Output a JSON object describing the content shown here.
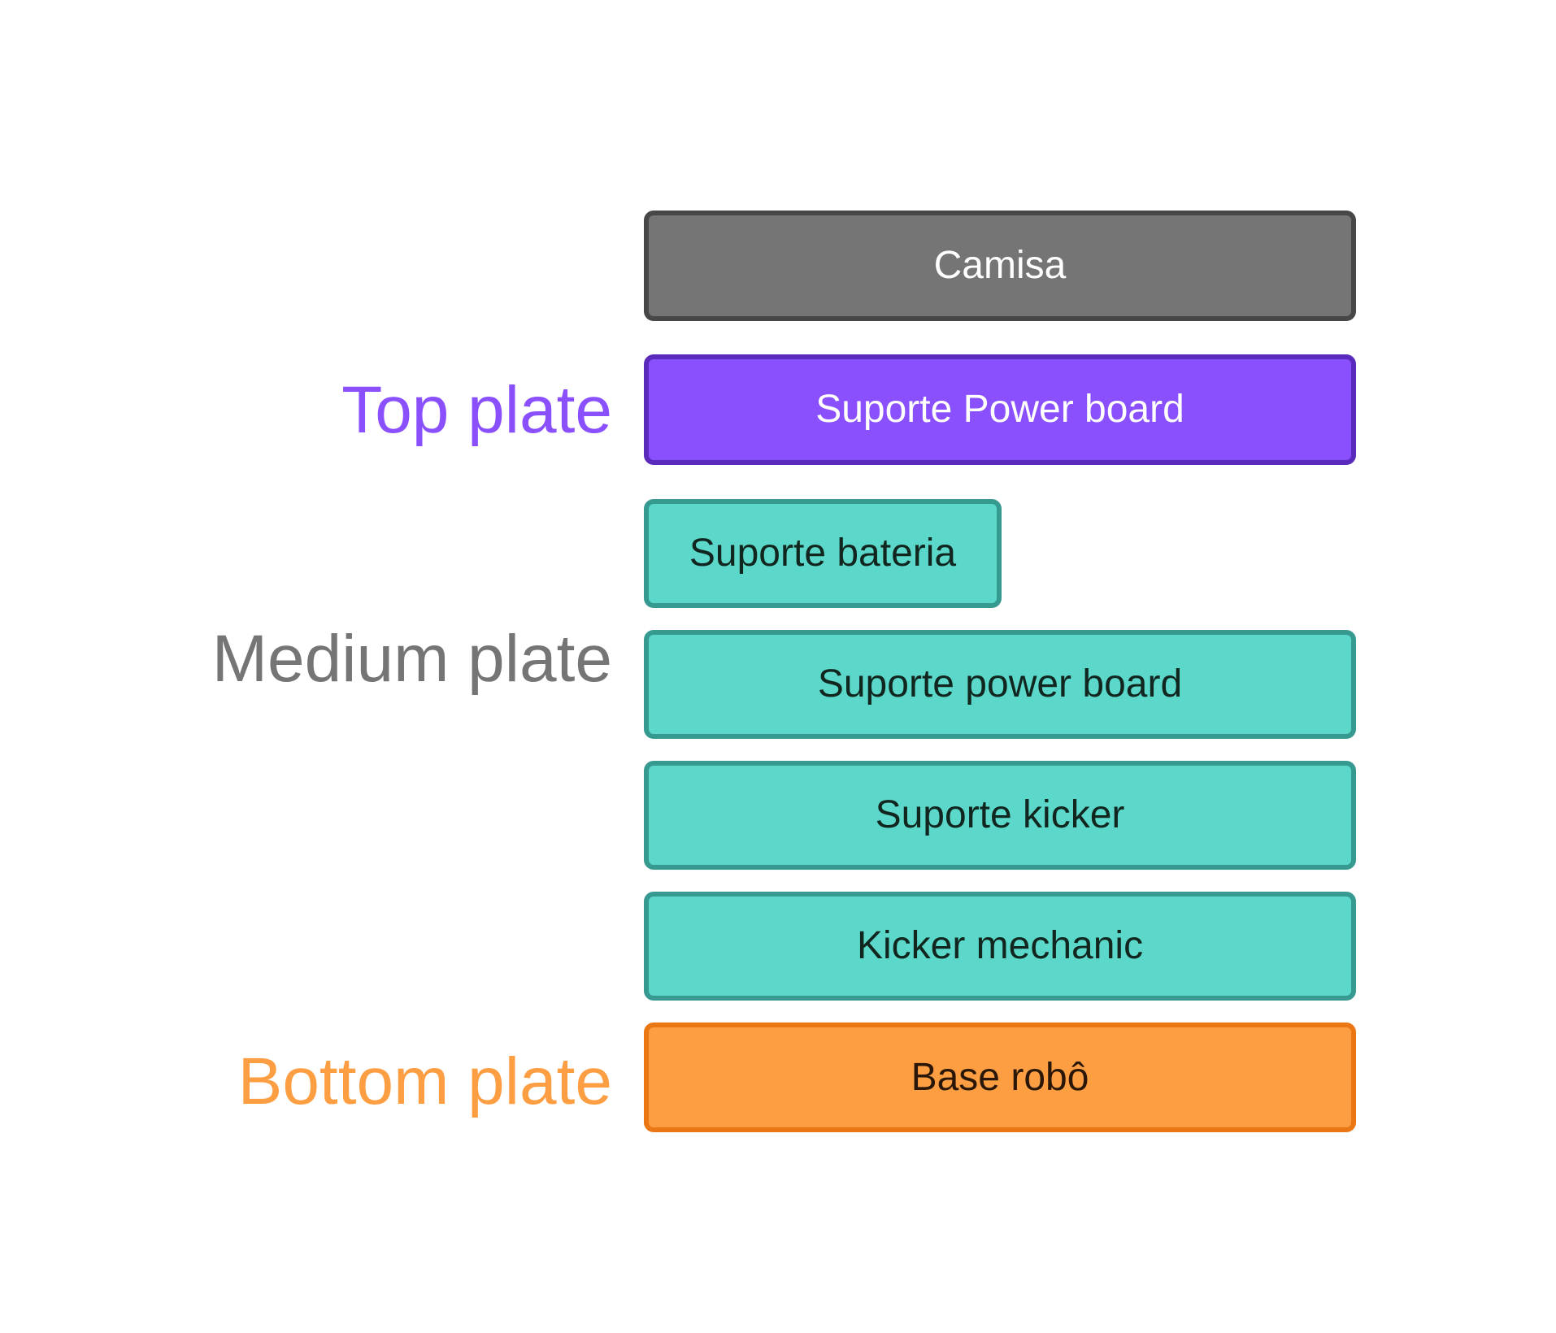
{
  "groups": {
    "top": "Top plate",
    "medium": "Medium plate",
    "bottom": "Bottom plate"
  },
  "boxes": {
    "camisa": "Camisa",
    "suporte_power_board_top": "Suporte Power board",
    "suporte_bateria": "Suporte bateria",
    "suporte_power_board_medium": "Suporte power board",
    "suporte_kicker": "Suporte kicker",
    "kicker_mechanic": "Kicker mechanic",
    "base_robo": "Base robô"
  },
  "colors": {
    "gray": "#757575",
    "purple": "#8a50fd",
    "teal": "#5bd8c9",
    "orange": "#fd9e43"
  }
}
